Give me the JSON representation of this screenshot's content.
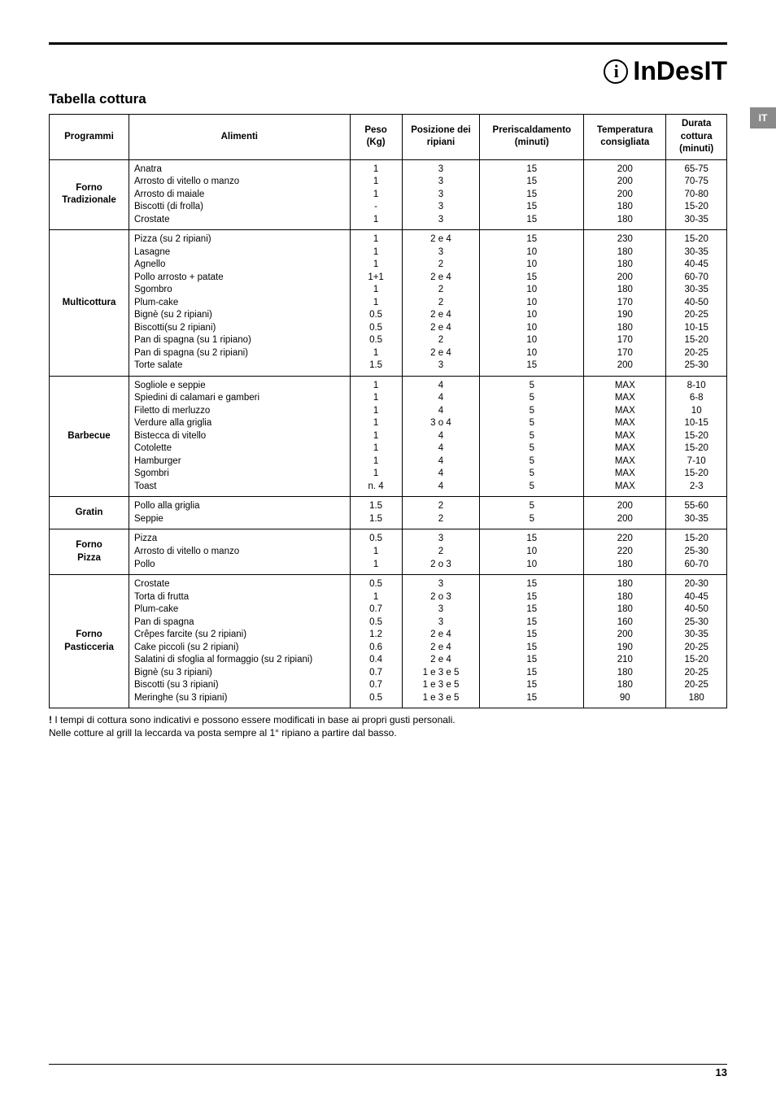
{
  "brand": "InDesIT",
  "lang_tab": "IT",
  "title": "Tabella cottura",
  "page_number": "13",
  "headers": {
    "programmi": "Programmi",
    "alimenti": "Alimenti",
    "peso": "Peso (Kg)",
    "posizione": "Posizione dei ripiani",
    "prerisc": "Preriscaldamento (minuti)",
    "temp": "Temperatura consigliata",
    "durata": "Durata cottura (minuti)"
  },
  "notes": {
    "line1_bang": "!",
    "line1": " I tempi di cottura sono indicativi e possono essere modificati in base ai propri gusti personali.",
    "line2": "Nelle cotture al grill la leccarda va posta sempre al 1° ripiano a partire dal basso."
  },
  "groups": [
    {
      "program": "Forno Tradizionale",
      "rows": [
        {
          "food": "Anatra",
          "peso": "1",
          "pos": "3",
          "pre": "15",
          "temp": "200",
          "dur": "65-75"
        },
        {
          "food": "Arrosto di vitello o manzo",
          "peso": "1",
          "pos": "3",
          "pre": "15",
          "temp": "200",
          "dur": "70-75"
        },
        {
          "food": "Arrosto di maiale",
          "peso": "1",
          "pos": "3",
          "pre": "15",
          "temp": "200",
          "dur": "70-80"
        },
        {
          "food": "Biscotti (di frolla)",
          "peso": "-",
          "pos": "3",
          "pre": "15",
          "temp": "180",
          "dur": "15-20"
        },
        {
          "food": "Crostate",
          "peso": "1",
          "pos": "3",
          "pre": "15",
          "temp": "180",
          "dur": "30-35"
        }
      ]
    },
    {
      "program": "Multicottura",
      "rows": [
        {
          "food": "Pizza (su 2 ripiani)",
          "peso": "1",
          "pos": "2 e 4",
          "pre": "15",
          "temp": "230",
          "dur": "15-20"
        },
        {
          "food": "Lasagne",
          "peso": "1",
          "pos": "3",
          "pre": "10",
          "temp": "180",
          "dur": "30-35"
        },
        {
          "food": "Agnello",
          "peso": "1",
          "pos": "2",
          "pre": "10",
          "temp": "180",
          "dur": "40-45"
        },
        {
          "food": "Pollo arrosto + patate",
          "peso": "1+1",
          "pos": "2 e 4",
          "pre": "15",
          "temp": "200",
          "dur": "60-70"
        },
        {
          "food": "Sgombro",
          "peso": "1",
          "pos": "2",
          "pre": "10",
          "temp": "180",
          "dur": "30-35"
        },
        {
          "food": "Plum-cake",
          "peso": "1",
          "pos": "2",
          "pre": "10",
          "temp": "170",
          "dur": "40-50"
        },
        {
          "food": "Bignè (su 2 ripiani)",
          "peso": "0.5",
          "pos": "2 e 4",
          "pre": "10",
          "temp": "190",
          "dur": "20-25"
        },
        {
          "food": "Biscotti(su 2 ripiani)",
          "peso": "0.5",
          "pos": "2 e 4",
          "pre": "10",
          "temp": "180",
          "dur": "10-15"
        },
        {
          "food": "Pan di spagna (su 1 ripiano)",
          "peso": "0.5",
          "pos": "2",
          "pre": "10",
          "temp": "170",
          "dur": "15-20"
        },
        {
          "food": "Pan di spagna (su 2 ripiani)",
          "peso": "1",
          "pos": "2 e 4",
          "pre": "10",
          "temp": "170",
          "dur": "20-25"
        },
        {
          "food": "Torte salate",
          "peso": "1.5",
          "pos": "3",
          "pre": "15",
          "temp": "200",
          "dur": "25-30"
        }
      ]
    },
    {
      "program": "Barbecue",
      "rows": [
        {
          "food": "Sogliole e seppie",
          "peso": "1",
          "pos": "4",
          "pre": "5",
          "temp": "MAX",
          "dur": "8-10"
        },
        {
          "food": "Spiedini di calamari e gamberi",
          "peso": "1",
          "pos": "4",
          "pre": "5",
          "temp": "MAX",
          "dur": "6-8"
        },
        {
          "food": "Filetto di merluzzo",
          "peso": "1",
          "pos": "4",
          "pre": "5",
          "temp": "MAX",
          "dur": "10"
        },
        {
          "food": "Verdure alla griglia",
          "peso": "1",
          "pos": "3 o 4",
          "pre": "5",
          "temp": "MAX",
          "dur": "10-15"
        },
        {
          "food": "Bistecca di vitello",
          "peso": "1",
          "pos": "4",
          "pre": "5",
          "temp": "MAX",
          "dur": "15-20"
        },
        {
          "food": "Cotolette",
          "peso": "1",
          "pos": "4",
          "pre": "5",
          "temp": "MAX",
          "dur": "15-20"
        },
        {
          "food": "Hamburger",
          "peso": "1",
          "pos": "4",
          "pre": "5",
          "temp": "MAX",
          "dur": "7-10"
        },
        {
          "food": "Sgombri",
          "peso": "1",
          "pos": "4",
          "pre": "5",
          "temp": "MAX",
          "dur": "15-20"
        },
        {
          "food": "Toast",
          "peso": "n. 4",
          "pos": "4",
          "pre": "5",
          "temp": "MAX",
          "dur": "2-3"
        }
      ]
    },
    {
      "program": "Gratin",
      "rows": [
        {
          "food": "Pollo alla griglia",
          "peso": "1.5",
          "pos": "2",
          "pre": "5",
          "temp": "200",
          "dur": "55-60"
        },
        {
          "food": "Seppie",
          "peso": "1.5",
          "pos": "2",
          "pre": "5",
          "temp": "200",
          "dur": "30-35"
        }
      ]
    },
    {
      "program": "Forno Pizza",
      "rows": [
        {
          "food": "Pizza",
          "peso": "0.5",
          "pos": "3",
          "pre": "15",
          "temp": "220",
          "dur": "15-20"
        },
        {
          "food": "Arrosto di vitello o manzo",
          "peso": "1",
          "pos": "2",
          "pre": "10",
          "temp": "220",
          "dur": "25-30"
        },
        {
          "food": "Pollo",
          "peso": "1",
          "pos": "2 o 3",
          "pre": "10",
          "temp": "180",
          "dur": "60-70"
        }
      ]
    },
    {
      "program": "Forno Pasticceria",
      "rows": [
        {
          "food": "Crostate",
          "peso": "0.5",
          "pos": "3",
          "pre": "15",
          "temp": "180",
          "dur": "20-30"
        },
        {
          "food": "Torta di frutta",
          "peso": "1",
          "pos": "2 o 3",
          "pre": "15",
          "temp": "180",
          "dur": "40-45"
        },
        {
          "food": "Plum-cake",
          "peso": "0.7",
          "pos": "3",
          "pre": "15",
          "temp": "180",
          "dur": "40-50"
        },
        {
          "food": "Pan di spagna",
          "peso": "0.5",
          "pos": "3",
          "pre": "15",
          "temp": "160",
          "dur": "25-30"
        },
        {
          "food": "Crêpes farcite (su 2 ripiani)",
          "peso": "1.2",
          "pos": "2 e 4",
          "pre": "15",
          "temp": "200",
          "dur": "30-35"
        },
        {
          "food": "Cake piccoli (su 2 ripiani)",
          "peso": "0.6",
          "pos": "2 e 4",
          "pre": "15",
          "temp": "190",
          "dur": "20-25"
        },
        {
          "food": "Salatini di sfoglia al formaggio (su 2 ripiani)",
          "peso": "0.4",
          "pos": "2 e 4",
          "pre": "15",
          "temp": "210",
          "dur": "15-20"
        },
        {
          "food": "Bignè (su 3 ripiani)",
          "peso": "0.7",
          "pos": "1 e 3 e 5",
          "pre": "15",
          "temp": "180",
          "dur": "20-25"
        },
        {
          "food": "Biscotti (su 3 ripiani)",
          "peso": "0.7",
          "pos": "1 e 3 e 5",
          "pre": "15",
          "temp": "180",
          "dur": "20-25"
        },
        {
          "food": "Meringhe (su 3 ripiani)",
          "peso": "0.5",
          "pos": "1 e 3 e 5",
          "pre": "15",
          "temp": "90",
          "dur": "180"
        }
      ]
    }
  ]
}
